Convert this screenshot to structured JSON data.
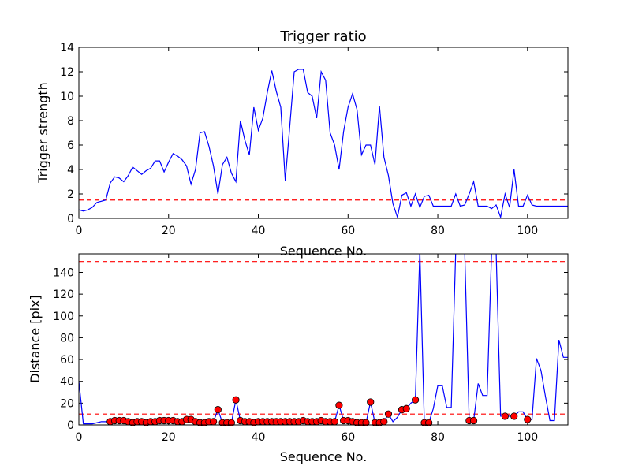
{
  "chart_data": [
    {
      "type": "line",
      "title": "Trigger ratio",
      "xlabel": "Sequence No.",
      "ylabel": "Trigger strength",
      "xlim": [
        0,
        109
      ],
      "ylim": [
        0,
        14
      ],
      "xticks": [
        0,
        20,
        40,
        60,
        80,
        100
      ],
      "yticks": [
        0,
        2,
        4,
        6,
        8,
        10,
        12,
        14
      ],
      "grid": false,
      "colors": {
        "line": "#0000ff",
        "threshold": "#ff0000"
      },
      "threshold": 1.5,
      "series": [
        {
          "x": [
            0,
            1,
            2,
            3,
            4,
            5,
            6,
            7,
            8,
            9,
            10,
            11,
            12,
            13,
            14,
            15,
            16,
            17,
            18,
            19,
            20,
            21,
            22,
            23,
            24,
            25,
            26,
            27,
            28,
            29,
            30,
            31,
            32,
            33,
            34,
            35,
            36,
            37,
            38,
            39,
            40,
            41,
            42,
            43,
            44,
            45,
            46,
            47,
            48,
            49,
            50,
            51,
            52,
            53,
            54,
            55,
            56,
            57,
            58,
            59,
            60,
            61,
            62,
            63,
            64,
            65,
            66,
            67,
            68,
            69,
            70,
            71,
            72,
            73,
            74,
            75,
            76,
            77,
            78,
            79,
            80,
            81,
            82,
            83,
            84,
            85,
            86,
            87,
            88,
            89,
            90,
            91,
            92,
            93,
            94,
            95,
            96,
            97,
            98,
            99,
            100,
            101,
            102,
            103,
            104,
            105,
            106,
            107,
            108,
            109
          ],
          "y": [
            0.7,
            0.6,
            0.7,
            0.9,
            1.3,
            1.4,
            1.5,
            2.9,
            3.4,
            3.3,
            3.0,
            3.5,
            4.2,
            3.9,
            3.6,
            3.9,
            4.1,
            4.7,
            4.7,
            3.8,
            4.6,
            5.3,
            5.1,
            4.8,
            4.3,
            2.8,
            4.0,
            7.0,
            7.1,
            5.9,
            4.3,
            2.0,
            4.4,
            5.0,
            3.7,
            3.0,
            8.0,
            6.4,
            5.2,
            9.1,
            7.2,
            8.2,
            10.3,
            12.1,
            10.4,
            9.1,
            3.1,
            7.5,
            12.0,
            12.2,
            12.2,
            10.3,
            10.0,
            8.2,
            12.0,
            11.3,
            7.0,
            6.0,
            4.0,
            7.1,
            9.1,
            10.2,
            8.9,
            5.2,
            6.0,
            6.0,
            4.4,
            9.2,
            5.0,
            3.5,
            1.2,
            0.1,
            1.9,
            2.1,
            1.0,
            2.0,
            0.9,
            1.8,
            1.9,
            1.0,
            1.0,
            1.0,
            1.0,
            1.0,
            2.0,
            1.0,
            1.1,
            2.0,
            3.0,
            1.0,
            1.0,
            1.0,
            0.8,
            1.1,
            0.1,
            2.0,
            0.9,
            4.0,
            1.0,
            1.0,
            1.9,
            1.1,
            1.0,
            1.0,
            1.0,
            1.0,
            1.0,
            1.0,
            1.0,
            1.0
          ]
        }
      ]
    },
    {
      "type": "line",
      "title": "",
      "xlabel": "Sequence No.",
      "ylabel": "Distance [pix]",
      "xlim": [
        0,
        109
      ],
      "ylim": [
        0,
        157
      ],
      "xticks": [
        0,
        20,
        40,
        60,
        80,
        100
      ],
      "yticks": [
        0,
        20,
        40,
        60,
        80,
        100,
        120,
        140
      ],
      "grid": false,
      "colors": {
        "line": "#0000ff",
        "threshold": "#ff0000",
        "marker": "#ff0000"
      },
      "thresholds": [
        150,
        10
      ],
      "series": [
        {
          "x": [
            0,
            1,
            2,
            3,
            4,
            5,
            6,
            7,
            8,
            9,
            10,
            11,
            12,
            13,
            14,
            15,
            16,
            17,
            18,
            19,
            20,
            21,
            22,
            23,
            24,
            25,
            26,
            27,
            28,
            29,
            30,
            31,
            32,
            33,
            34,
            35,
            36,
            37,
            38,
            39,
            40,
            41,
            42,
            43,
            44,
            45,
            46,
            47,
            48,
            49,
            50,
            51,
            52,
            53,
            54,
            55,
            56,
            57,
            58,
            59,
            60,
            61,
            62,
            63,
            64,
            65,
            66,
            67,
            68,
            69,
            70,
            71,
            72,
            73,
            74,
            75,
            76,
            77,
            78,
            79,
            80,
            81,
            82,
            83,
            84,
            85,
            86,
            87,
            88,
            89,
            90,
            91,
            92,
            93,
            94,
            95,
            96,
            97,
            98,
            99,
            100,
            101,
            102,
            103,
            104,
            105,
            106,
            107,
            108,
            109
          ],
          "y": [
            40,
            1,
            1,
            1,
            2,
            3,
            3,
            3,
            4,
            4,
            4,
            3,
            2,
            3,
            3,
            2,
            3,
            3,
            4,
            4,
            4,
            4,
            3,
            3,
            5,
            5,
            3,
            2,
            2,
            3,
            3,
            14,
            2,
            2,
            2,
            23,
            4,
            3,
            3,
            2,
            3,
            3,
            3,
            3,
            3,
            3,
            3,
            3,
            3,
            3,
            3,
            4,
            3,
            3,
            3,
            4,
            3,
            3,
            18,
            4,
            4,
            3,
            2,
            2,
            2,
            21,
            2,
            2,
            3,
            10,
            3,
            7,
            14,
            15,
            20,
            23,
            160,
            2,
            2,
            15,
            36,
            36,
            16,
            16,
            160,
            160,
            160,
            4,
            4,
            38,
            27,
            27,
            160,
            160,
            8,
            8,
            8,
            8,
            12,
            12,
            5,
            5,
            61,
            50,
            26,
            4,
            4,
            78,
            62,
            62
          ],
          "markers_x": [
            7,
            8,
            9,
            10,
            11,
            12,
            13,
            14,
            15,
            16,
            17,
            18,
            19,
            20,
            21,
            22,
            23,
            24,
            25,
            26,
            27,
            28,
            29,
            30,
            31,
            32,
            33,
            34,
            35,
            36,
            37,
            38,
            39,
            40,
            41,
            42,
            43,
            44,
            45,
            46,
            47,
            48,
            49,
            50,
            51,
            52,
            53,
            54,
            55,
            56,
            57,
            58,
            59,
            60,
            61,
            62,
            63,
            64,
            65,
            66,
            67,
            68,
            69,
            72,
            73,
            75,
            77,
            78,
            87,
            88,
            95,
            97,
            100
          ],
          "markers_y": [
            3,
            4,
            4,
            4,
            3,
            2,
            3,
            3,
            2,
            3,
            3,
            4,
            4,
            4,
            4,
            3,
            3,
            5,
            5,
            3,
            2,
            2,
            3,
            3,
            14,
            2,
            2,
            2,
            23,
            4,
            3,
            3,
            2,
            3,
            3,
            3,
            3,
            3,
            3,
            3,
            3,
            3,
            3,
            4,
            3,
            3,
            3,
            4,
            3,
            3,
            3,
            18,
            4,
            4,
            3,
            2,
            2,
            2,
            21,
            2,
            2,
            3,
            10,
            14,
            15,
            23,
            2,
            2,
            4,
            4,
            8,
            8,
            5
          ]
        }
      ]
    }
  ]
}
